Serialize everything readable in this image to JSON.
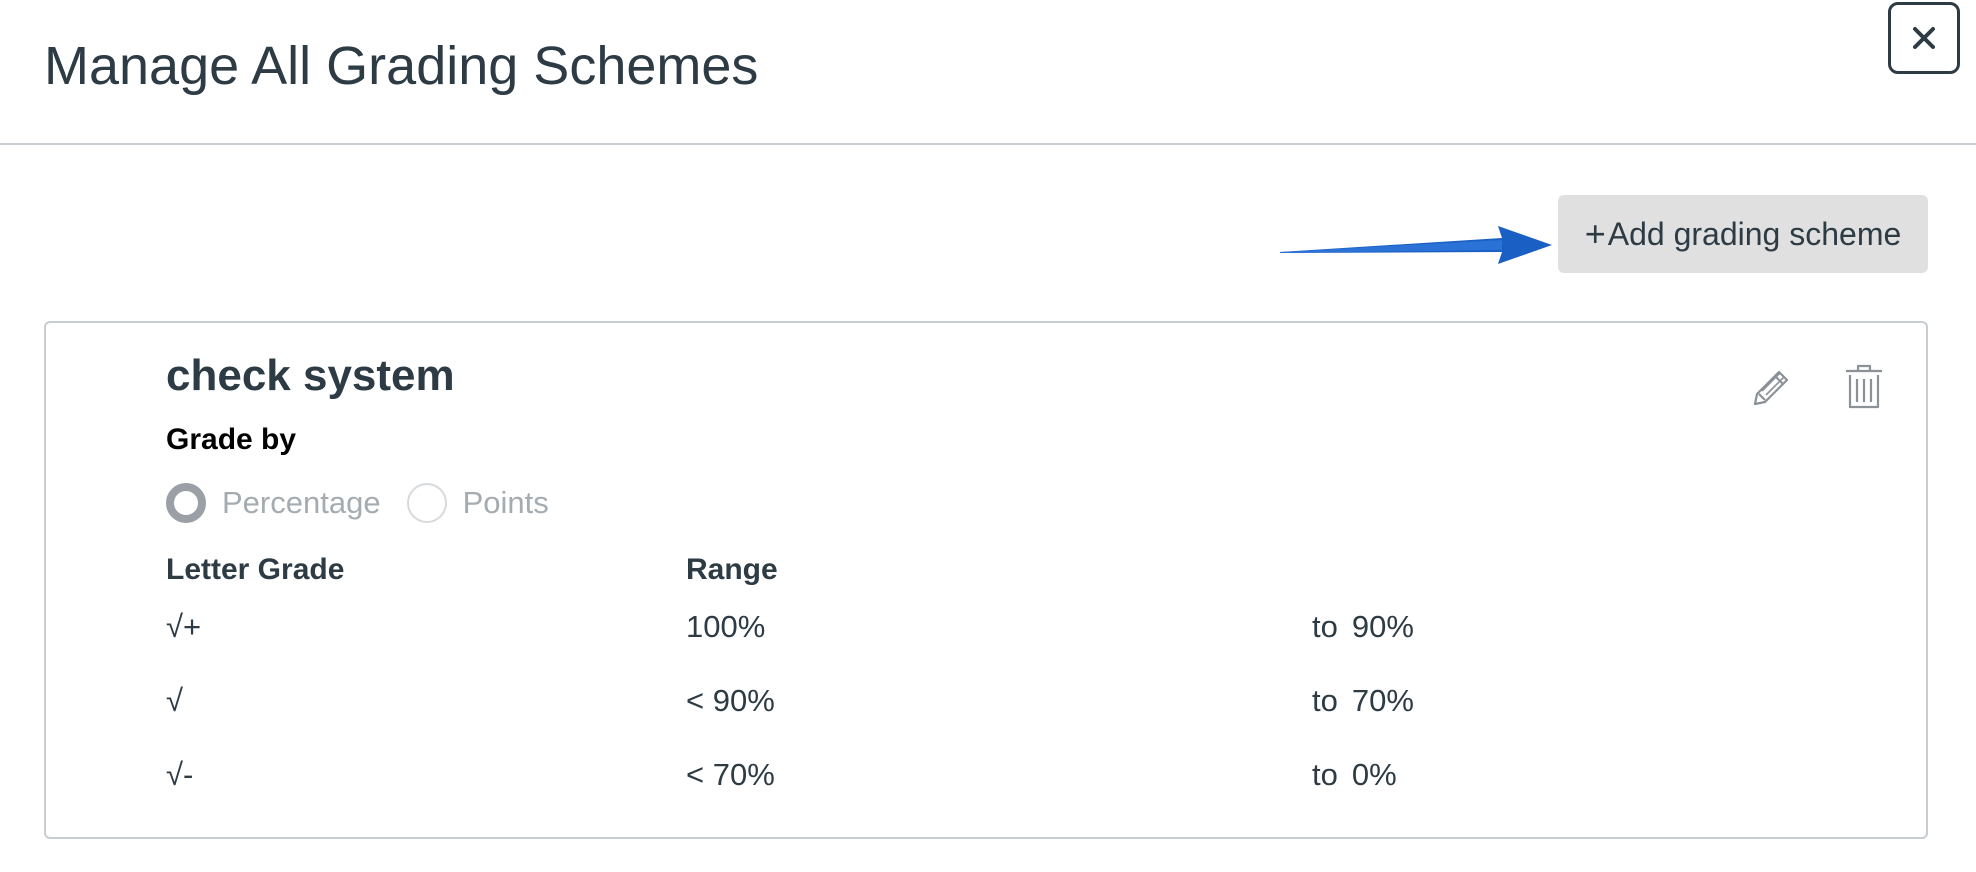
{
  "header": {
    "title": "Manage All Grading Schemes",
    "close_label": "×"
  },
  "toolbar": {
    "add_icon": "+",
    "add_label": "Add grading scheme"
  },
  "annotation": {
    "arrow_icon": "arrow-right-icon",
    "color": "#1a5fc4"
  },
  "scheme": {
    "title": "check system",
    "edit_icon": "pencil-icon",
    "delete_icon": "trash-icon",
    "grade_by_label": "Grade by",
    "grade_by_options": [
      {
        "label": "Percentage",
        "selected": true
      },
      {
        "label": "Points",
        "selected": false
      }
    ],
    "columns": {
      "letter": "Letter Grade",
      "range": "Range"
    },
    "rows": [
      {
        "letter": "√+",
        "max": "100%",
        "to": "to",
        "min": "90%"
      },
      {
        "letter": "√",
        "max": "< 90%",
        "to": "to",
        "min": "70%"
      },
      {
        "letter": "√-",
        "max": "< 70%",
        "to": "to",
        "min": "0%"
      }
    ]
  }
}
